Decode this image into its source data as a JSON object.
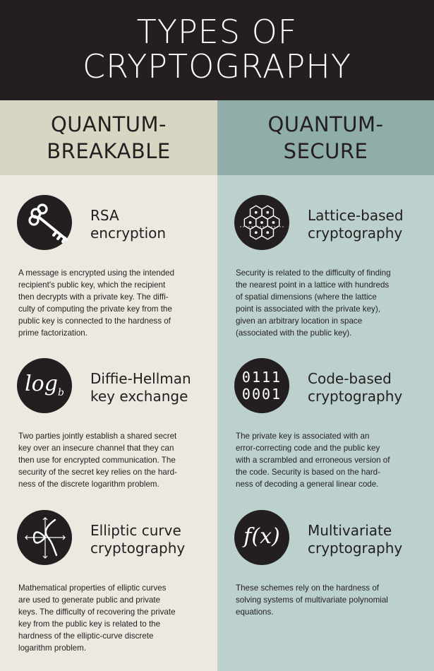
{
  "header": {
    "line1": "TYPES OF",
    "line2": "CRYPTOGRAPHY"
  },
  "colors": {
    "header_bg": "#231f20",
    "left_head": "#d8d6c3",
    "left_body": "#ebe9e0",
    "right_head": "#8fada9",
    "right_body": "#bcd0cd"
  },
  "left": {
    "heading_line1": "QUANTUM-",
    "heading_line2": "BREAKABLE",
    "items": [
      {
        "icon": "key-icon",
        "title_line1": "RSA",
        "title_line2": "encryption",
        "description": "A message is encrypted using the intended\nrecipient's public key, which the recipient\nthen decrypts with a private key. The diffi-\nculty of computing the private key from the\npublic key is connected to the hardness of\nprime factorization."
      },
      {
        "icon": "logarithm-icon",
        "icon_text": "log",
        "icon_subscript": "b",
        "title_line1": "Diffie-Hellman",
        "title_line2": "key exchange",
        "description": "Two parties jointly establish a shared secret\nkey over an insecure channel that they can\nthen use for encrypted communication. The\nsecurity of the secret key relies on the hard-\nness of the discrete logarithm problem."
      },
      {
        "icon": "elliptic-curve-icon",
        "title_line1": "Elliptic curve",
        "title_line2": "cryptography",
        "description": "Mathematical properties of elliptic curves\nare used to generate public and private\nkeys. The difficulty of recovering the private\nkey from the public key is related to the\nhardness of the elliptic-curve discrete\nlogarithm problem."
      }
    ]
  },
  "right": {
    "heading_line1": "QUANTUM-",
    "heading_line2": "SECURE",
    "items": [
      {
        "icon": "lattice-icon",
        "title_line1": "Lattice-based",
        "title_line2": "cryptography",
        "description": "Security is related to the difficulty of finding\nthe nearest point in a lattice with hundreds\nof spatial dimensions (where the lattice\npoint is associated with the private key),\ngiven an arbitrary location in space\n(associated with the public key)."
      },
      {
        "icon": "binary-code-icon",
        "icon_line1": "0111",
        "icon_line2": "0001",
        "title_line1": "Code-based",
        "title_line2": "cryptography",
        "description": "The private key is associated with an\nerror-correcting code and the public key\nwith a scrambled and erroneous version of\nthe code. Security is based on the hard-\nness of decoding a general linear code."
      },
      {
        "icon": "function-icon",
        "icon_text": "f(x)",
        "title_line1": "Multivariate",
        "title_line2": "cryptography",
        "description": "These schemes rely on the hardness of\nsolving systems of multivariate polynomial\nequations."
      }
    ]
  }
}
